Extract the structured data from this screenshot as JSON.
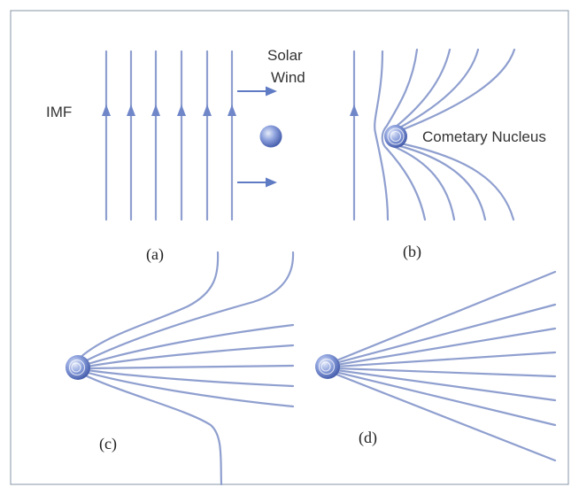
{
  "labels": {
    "imf": "IMF",
    "solar_wind_line1": "Solar",
    "solar_wind_line2": "Wind",
    "nucleus": "Cometary Nucleus"
  },
  "panels": [
    {
      "id": "a",
      "caption": "(a)"
    },
    {
      "id": "b",
      "caption": "(b)"
    },
    {
      "id": "c",
      "caption": "(c)"
    },
    {
      "id": "d",
      "caption": "(d)"
    }
  ],
  "colors": {
    "field_line": "#8f9fcf",
    "arrow": "#6f86c8",
    "nucleus": "#4f67b5",
    "frame": "#9aa6b6"
  }
}
